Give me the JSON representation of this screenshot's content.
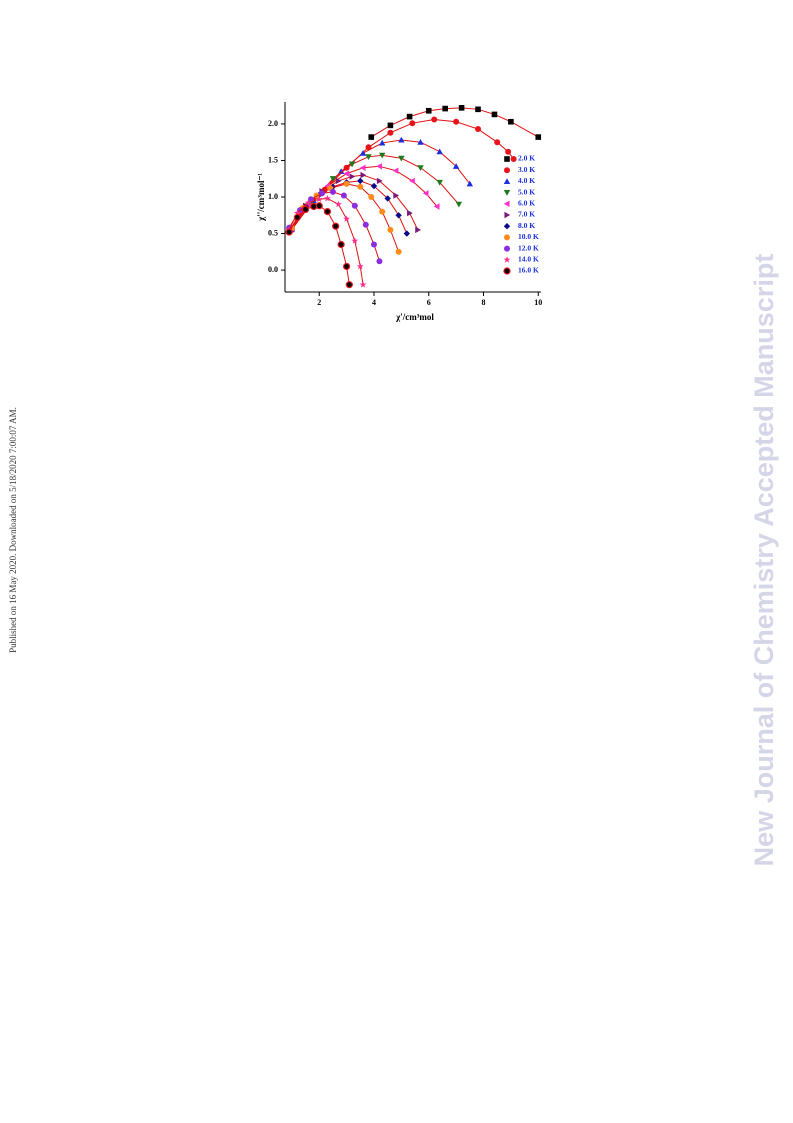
{
  "sidebar_text": "Published on 16 May 2020. Downloaded on 5/18/2020 7:00:07 AM.",
  "watermark": "New Journal of Chemistry Accepted Manuscript",
  "chart_data": {
    "type": "scatter",
    "x_label": "χ'/cm³mol",
    "y_label": "χ''/cm³mol⁻¹",
    "xlim": [
      0.75,
      10.1
    ],
    "ylim": [
      -0.3,
      2.3
    ],
    "xticks": [
      2,
      4,
      6,
      8,
      10
    ],
    "yticks": [
      {
        "value": 0,
        "label": "0.0"
      },
      0.5,
      {
        "value": 1,
        "label": "1.0"
      },
      1.5,
      {
        "value": 2,
        "label": "2.0"
      }
    ],
    "legend": "right",
    "legend_text_color": "#1a2ee0",
    "fit_color": "#e01010",
    "series": [
      {
        "name": "2.0 K",
        "color": "#000000",
        "marker": "square",
        "x": [
          3.9,
          4.6,
          5.3,
          6.0,
          6.6,
          7.2,
          7.8,
          8.4,
          9.0,
          10.0
        ],
        "values": [
          1.82,
          1.98,
          2.1,
          2.18,
          2.21,
          2.22,
          2.2,
          2.13,
          2.03,
          1.82
        ]
      },
      {
        "name": "3.0 K",
        "color": "#e8141c",
        "marker": "circle",
        "x": [
          1.0,
          1.5,
          2.2,
          3.0,
          3.8,
          4.6,
          5.4,
          6.2,
          7.0,
          7.8,
          8.5,
          8.9,
          9.1
        ],
        "values": [
          0.55,
          0.82,
          1.1,
          1.4,
          1.68,
          1.88,
          2.01,
          2.06,
          2.03,
          1.93,
          1.75,
          1.62,
          1.52
        ]
      },
      {
        "name": "4.0 K",
        "color": "#1a2ee0",
        "marker": "triangle-up",
        "x": [
          1.0,
          1.8,
          2.8,
          3.6,
          4.3,
          5.0,
          5.7,
          6.4,
          7.0,
          7.5
        ],
        "values": [
          0.56,
          0.95,
          1.35,
          1.6,
          1.74,
          1.78,
          1.75,
          1.62,
          1.42,
          1.18
        ]
      },
      {
        "name": "5.0 K",
        "color": "#1e7a1e",
        "marker": "triangle-down",
        "x": [
          1.0,
          1.7,
          2.5,
          3.2,
          3.8,
          4.3,
          5.0,
          5.7,
          6.4,
          7.1
        ],
        "values": [
          0.56,
          0.92,
          1.25,
          1.45,
          1.55,
          1.57,
          1.53,
          1.4,
          1.2,
          0.9
        ]
      },
      {
        "name": "6.0 K",
        "color": "#ff33cc",
        "marker": "triangle-left",
        "x": [
          1.0,
          1.6,
          2.3,
          3.0,
          3.6,
          4.2,
          4.8,
          5.4,
          5.9,
          6.3
        ],
        "values": [
          0.57,
          0.9,
          1.15,
          1.32,
          1.4,
          1.42,
          1.36,
          1.22,
          1.05,
          0.87
        ]
      },
      {
        "name": "7.0 K",
        "color": "#7a1a7a",
        "marker": "triangle-right",
        "x": [
          1.0,
          1.5,
          2.1,
          2.7,
          3.2,
          3.6,
          4.2,
          4.8,
          5.3,
          5.6
        ],
        "values": [
          0.58,
          0.88,
          1.08,
          1.22,
          1.28,
          1.3,
          1.22,
          1.02,
          0.78,
          0.55
        ]
      },
      {
        "name": "8.0 K",
        "color": "#0a0a8a",
        "marker": "diamond",
        "x": [
          1.0,
          1.5,
          2.0,
          2.5,
          3.0,
          3.5,
          4.0,
          4.5,
          4.9,
          5.2
        ],
        "values": [
          0.58,
          0.87,
          1.03,
          1.14,
          1.2,
          1.22,
          1.15,
          0.98,
          0.75,
          0.5
        ]
      },
      {
        "name": "10.0 K",
        "color": "#ff8c1a",
        "marker": "circle",
        "x": [
          1.0,
          1.4,
          1.9,
          2.4,
          3.0,
          3.5,
          3.9,
          4.3,
          4.6,
          4.9
        ],
        "values": [
          0.58,
          0.85,
          1.02,
          1.12,
          1.18,
          1.14,
          1.0,
          0.8,
          0.55,
          0.25
        ]
      },
      {
        "name": "12.0 K",
        "color": "#8c2ee0",
        "marker": "circle",
        "x": [
          0.9,
          1.3,
          1.7,
          2.1,
          2.5,
          2.9,
          3.3,
          3.7,
          4.0,
          4.2
        ],
        "values": [
          0.58,
          0.82,
          0.97,
          1.05,
          1.07,
          1.02,
          0.88,
          0.62,
          0.35,
          0.12
        ]
      },
      {
        "name": "14.0 K",
        "color": "#ff2e8c",
        "marker": "star",
        "x": [
          0.9,
          1.2,
          1.6,
          2.0,
          2.3,
          2.7,
          3.0,
          3.3,
          3.5,
          3.6
        ],
        "values": [
          0.55,
          0.78,
          0.92,
          0.97,
          0.98,
          0.9,
          0.7,
          0.4,
          0.05,
          -0.2
        ]
      },
      {
        "name": "16.0 K",
        "color": "#000000",
        "marker": "half-circle",
        "x": [
          0.9,
          1.2,
          1.5,
          1.8,
          2.0,
          2.3,
          2.6,
          2.8,
          3.0,
          3.1
        ],
        "values": [
          0.52,
          0.72,
          0.83,
          0.87,
          0.88,
          0.8,
          0.6,
          0.35,
          0.05,
          -0.2
        ]
      }
    ]
  }
}
